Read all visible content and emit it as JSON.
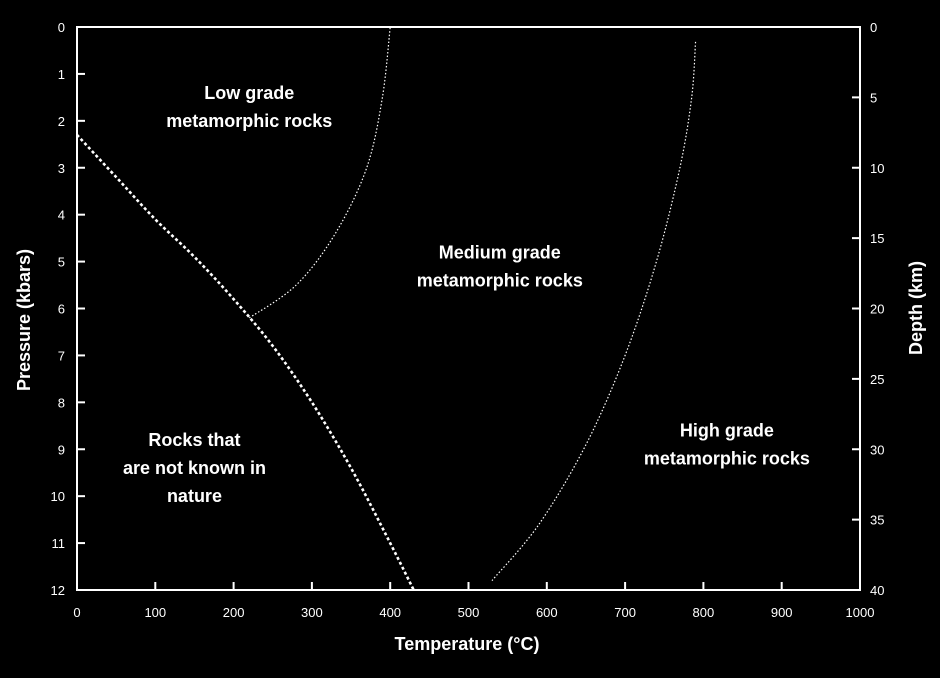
{
  "chart_data": {
    "type": "line",
    "title": "",
    "xlabel": "Temperature (°C)",
    "ylabel": "Pressure (kbars)",
    "y2label": "Depth (km)",
    "xlim": [
      0,
      1000
    ],
    "ylim": [
      12,
      0
    ],
    "y2lim": [
      40,
      0
    ],
    "x_ticks": [
      0,
      100,
      200,
      300,
      400,
      500,
      600,
      700,
      800,
      900,
      1000
    ],
    "y_ticks": [
      0,
      1,
      2,
      3,
      4,
      5,
      6,
      7,
      8,
      9,
      10,
      11,
      12
    ],
    "y2_ticks": [
      0,
      5,
      10,
      15,
      20,
      25,
      30,
      35,
      40
    ],
    "grid": false,
    "background": "#000000",
    "foreground": "#ffffff",
    "series": [
      {
        "style": "dashed-bold",
        "points": [
          [
            0,
            2.3
          ],
          [
            50,
            3.2
          ],
          [
            100,
            4.1
          ],
          [
            150,
            4.9
          ],
          [
            200,
            5.8
          ],
          [
            250,
            6.8
          ],
          [
            300,
            8.0
          ],
          [
            350,
            9.4
          ],
          [
            400,
            11.0
          ],
          [
            430,
            12.0
          ]
        ]
      },
      {
        "style": "dotted",
        "points": [
          [
            220,
            6.2
          ],
          [
            280,
            5.5
          ],
          [
            330,
            4.4
          ],
          [
            370,
            3.0
          ],
          [
            390,
            1.5
          ],
          [
            400,
            0.0
          ]
        ]
      },
      {
        "style": "dotted",
        "points": [
          [
            530,
            11.8
          ],
          [
            590,
            10.6
          ],
          [
            650,
            8.9
          ],
          [
            700,
            7.0
          ],
          [
            740,
            5.0
          ],
          [
            770,
            3.0
          ],
          [
            785,
            1.5
          ],
          [
            790,
            0.3
          ]
        ]
      }
    ],
    "annotations": [
      {
        "id": "low-grade",
        "lines": [
          "Low grade",
          "metamorphic rocks"
        ],
        "x": 220,
        "y": 1.7
      },
      {
        "id": "medium-grade",
        "lines": [
          "Medium grade",
          "metamorphic rocks"
        ],
        "x": 540,
        "y": 5.1
      },
      {
        "id": "high-grade",
        "lines": [
          "High grade",
          "metamorphic rocks"
        ],
        "x": 830,
        "y": 8.9
      },
      {
        "id": "not-in-nature",
        "lines": [
          "Rocks that",
          "are not known in",
          "nature"
        ],
        "x": 150,
        "y": 9.4
      }
    ]
  }
}
